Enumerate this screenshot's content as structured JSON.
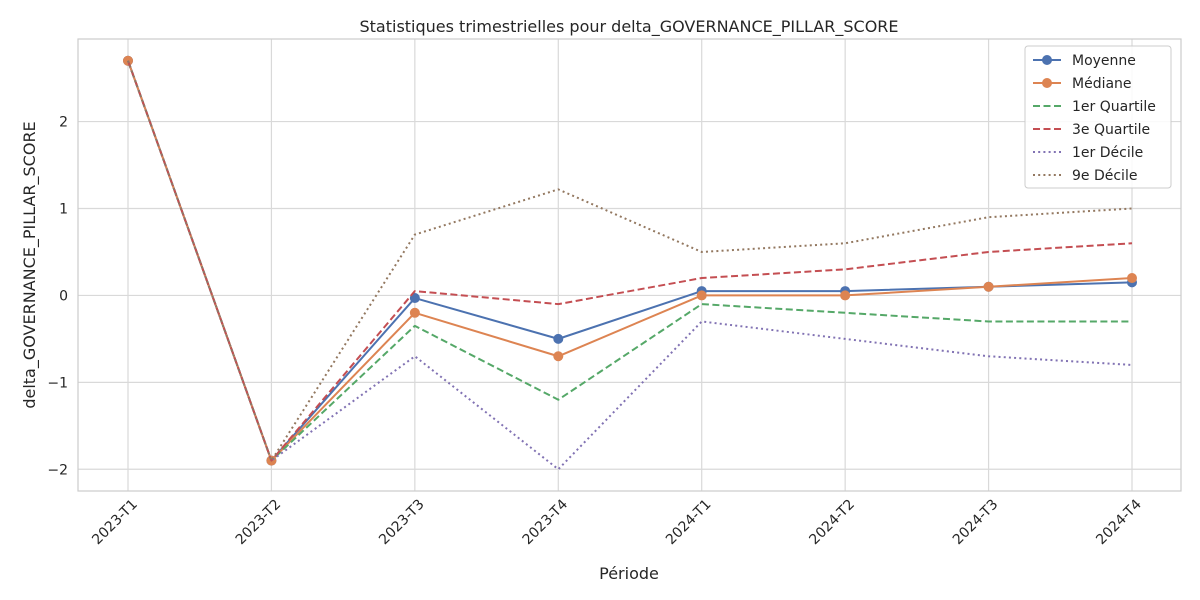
{
  "chart_data": {
    "type": "line",
    "title": "Statistiques trimestrielles pour delta_GOVERNANCE_PILLAR_SCORE",
    "xlabel": "Période",
    "ylabel": "delta_GOVERNANCE_PILLAR_SCORE",
    "categories": [
      "2023-T1",
      "2023-T2",
      "2023-T3",
      "2023-T4",
      "2024-T1",
      "2024-T2",
      "2024-T3",
      "2024-T4"
    ],
    "ylim": [
      -2.25,
      2.95
    ],
    "yticks": [
      -2,
      -1,
      0,
      1,
      2
    ],
    "ytick_labels": [
      "−2",
      "−1",
      "0",
      "1",
      "2"
    ],
    "grid": true,
    "legend_position": "top-right",
    "series": [
      {
        "name": "Moyenne",
        "values": [
          2.7,
          -1.9,
          -0.03,
          -0.5,
          0.05,
          0.05,
          0.1,
          0.15
        ],
        "color": "#4c72b0",
        "style": "solid",
        "marker": true
      },
      {
        "name": "Médiane",
        "values": [
          2.7,
          -1.9,
          -0.2,
          -0.7,
          0.0,
          0.0,
          0.1,
          0.2
        ],
        "color": "#dd8452",
        "style": "solid",
        "marker": true
      },
      {
        "name": "1er Quartile",
        "values": [
          2.7,
          -1.9,
          -0.35,
          -1.2,
          -0.1,
          -0.2,
          -0.3,
          -0.3
        ],
        "color": "#55a868",
        "style": "dashed",
        "marker": false
      },
      {
        "name": "3e Quartile",
        "values": [
          2.7,
          -1.9,
          0.05,
          -0.1,
          0.2,
          0.3,
          0.5,
          0.6
        ],
        "color": "#c44e52",
        "style": "dashed",
        "marker": false
      },
      {
        "name": "1er Décile",
        "values": [
          2.7,
          -1.9,
          -0.7,
          -2.0,
          -0.3,
          -0.5,
          -0.7,
          -0.8
        ],
        "color": "#8172b3",
        "style": "dotted",
        "marker": false
      },
      {
        "name": "9e Décile",
        "values": [
          2.7,
          -1.9,
          0.7,
          1.22,
          0.5,
          0.6,
          0.9,
          1.0
        ],
        "color": "#937860",
        "style": "dotted",
        "marker": false
      }
    ]
  }
}
